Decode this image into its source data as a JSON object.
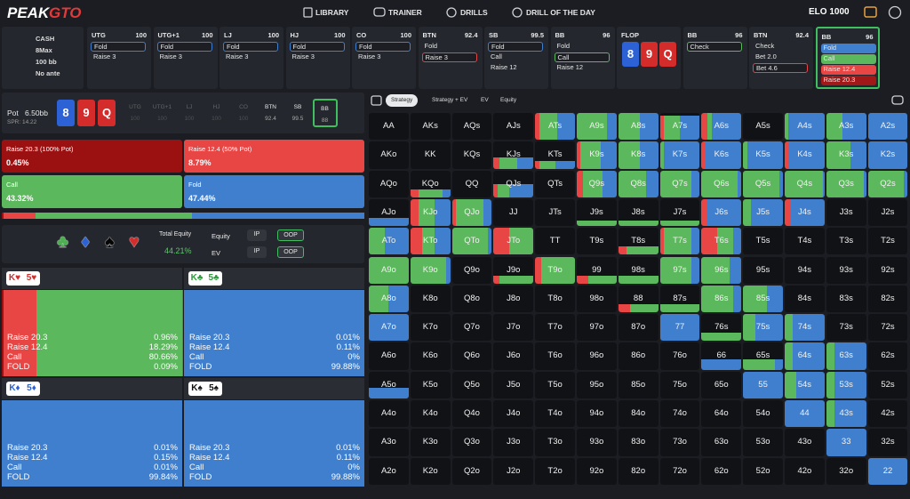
{
  "header": {
    "logo_left": "PEAK",
    "logo_right": "GTO",
    "nav": [
      "LIBRARY",
      "TRAINER",
      "DRILLS",
      "DRILL OF THE DAY"
    ],
    "elo": "ELO 1000"
  },
  "game": {
    "format": "CASH",
    "players": "8Max",
    "stack": "100 bb",
    "ante": "No ante"
  },
  "actions_row": [
    {
      "position": "UTG",
      "stack": 100,
      "options": [
        "Fold",
        "Raise 3"
      ],
      "selected": 0,
      "selected_color": "#3f7fce"
    },
    {
      "position": "UTG+1",
      "stack": 100,
      "options": [
        "Fold",
        "Raise 3"
      ],
      "selected": 0,
      "selected_color": "#3f7fce"
    },
    {
      "position": "LJ",
      "stack": 100,
      "options": [
        "Fold",
        "Raise 3"
      ],
      "selected": 0,
      "selected_color": "#3f7fce"
    },
    {
      "position": "HJ",
      "stack": 100,
      "options": [
        "Fold",
        "Raise 3"
      ],
      "selected": 0,
      "selected_color": "#3f7fce"
    },
    {
      "position": "CO",
      "stack": 100,
      "options": [
        "Fold",
        "Raise 3"
      ],
      "selected": 0,
      "selected_color": "#3f7fce"
    },
    {
      "position": "BTN",
      "stack": 92.4,
      "options": [
        "Fold",
        "Raise 3"
      ],
      "selected": 1,
      "selected_color": "#e84545"
    },
    {
      "position": "SB",
      "stack": 99.5,
      "options": [
        "Fold",
        "Call",
        "Raise 12"
      ],
      "selected": 0,
      "selected_color": "#3f7fce"
    },
    {
      "position": "BB",
      "stack": 96,
      "options": [
        "Fold",
        "Call",
        "Raise 12"
      ],
      "selected": 1,
      "selected_color": "#5cb85c"
    },
    {
      "street": "FLOP"
    },
    {
      "position": "BB",
      "stack": 96,
      "options": [
        "Check"
      ],
      "selected": 0,
      "selected_color": "#5cb85c"
    },
    {
      "position": "BTN",
      "stack": 92.4,
      "options": [
        "Check",
        "Bet 2.0",
        "Bet 4.6"
      ],
      "selected": 2,
      "selected_color": "#e84545"
    },
    {
      "position": "BB",
      "stack": 96,
      "options": [
        "Fold",
        "Call",
        "Raise 12.4",
        "Raise 20.3"
      ],
      "option_colors": [
        "#3f7fce",
        "#5cb85c",
        "#e84545",
        "#a01818"
      ],
      "active_color": "#3fbf5f"
    }
  ],
  "board": [
    {
      "rank": "8",
      "color": "#2d62d6"
    },
    {
      "rank": "9",
      "color": "#d42b2b"
    },
    {
      "rank": "Q",
      "color": "#d42b2b"
    }
  ],
  "pot_label": "Pot",
  "pot": "6.50bb",
  "spr": "SPR: 14.22",
  "seats": {
    "items": [
      {
        "position": "UTG",
        "stack": 100
      },
      {
        "position": "UTG+1",
        "stack": 100
      },
      {
        "position": "LJ",
        "stack": 100
      },
      {
        "position": "HJ",
        "stack": 100
      },
      {
        "position": "CO",
        "stack": 100
      },
      {
        "position": "BTN",
        "stack": 92.4
      },
      {
        "position": "SB",
        "stack": 99.5
      },
      {
        "position": "BB",
        "stack": 88
      }
    ],
    "folded": [
      0,
      1,
      2,
      3,
      4
    ],
    "active": 7
  },
  "action_colors": [
    "#9b1010",
    "#e84545",
    "#5cb85c",
    "#3f7fce"
  ],
  "summary": {
    "actions": [
      "Raise 20.3 (100% Pot)",
      "Raise 12.4 (50% Pot)",
      "Call",
      "Fold"
    ],
    "values": [
      0.45,
      8.79,
      43.32,
      47.44
    ],
    "value_labels": [
      "0.45%",
      "8.79%",
      "43.32%",
      "47.44%"
    ]
  },
  "suits": [
    {
      "symbol": "♣",
      "color": "#4caf50"
    },
    {
      "symbol": "♦",
      "color": "#2d62d6"
    },
    {
      "symbol": "♠",
      "color": "#050505"
    },
    {
      "symbol": "♥",
      "color": "#d42b2b"
    }
  ],
  "equity": {
    "total_label": "Total Equity",
    "total": "44.21%",
    "rows": [
      {
        "label": "Equity",
        "options": [
          "IP",
          "OOP"
        ],
        "selected": 1
      },
      {
        "label": "EV",
        "options": [
          "IP",
          "OOP"
        ],
        "selected": 1
      }
    ]
  },
  "combos": [
    {
      "cards": [
        "K♥",
        "5♥"
      ],
      "card_color": "#d42b2b",
      "actions": [
        "Raise 20.3",
        "Raise 12.4",
        "Call",
        "FOLD"
      ],
      "values": [
        0.96,
        18.29,
        80.66,
        0.09
      ],
      "value_labels": [
        "0.96%",
        "18.29%",
        "80.66%",
        "0.09%"
      ]
    },
    {
      "cards": [
        "K♣",
        "5♣"
      ],
      "card_color": "#2e9a3e",
      "actions": [
        "Raise 20.3",
        "Raise 12.4",
        "Call",
        "FOLD"
      ],
      "values": [
        0.01,
        0.11,
        0,
        99.88
      ],
      "value_labels": [
        "0.01%",
        "0.11%",
        "0%",
        "99.88%"
      ]
    },
    {
      "cards": [
        "K♦",
        "5♦"
      ],
      "card_color": "#2d62d6",
      "actions": [
        "Raise 20.3",
        "Raise 12.4",
        "Call",
        "FOLD"
      ],
      "values": [
        0.01,
        0.15,
        0.01,
        99.84
      ],
      "value_labels": [
        "0.01%",
        "0.15%",
        "0.01%",
        "99.84%"
      ]
    },
    {
      "cards": [
        "K♠",
        "5♠"
      ],
      "card_color": "#111111",
      "actions": [
        "Raise 20.3",
        "Raise 12.4",
        "Call",
        "FOLD"
      ],
      "values": [
        0.01,
        0.11,
        0,
        99.88
      ],
      "value_labels": [
        "0.01%",
        "0.11%",
        "0%",
        "99.88%"
      ]
    }
  ],
  "tabs": {
    "items": [
      "Strategy",
      "Strategy + EV",
      "EV",
      "Equity"
    ],
    "selected": 0
  },
  "grid": {
    "hands": [
      [
        "AA",
        "AKs",
        "AQs",
        "AJs",
        "ATs",
        "A9s",
        "A8s",
        "A7s",
        "A6s",
        "A5s",
        "A4s",
        "A3s",
        "A2s"
      ],
      [
        "AKo",
        "KK",
        "KQs",
        "KJs",
        "KTs",
        "K9s",
        "K8s",
        "K7s",
        "K6s",
        "K5s",
        "K4s",
        "K3s",
        "K2s"
      ],
      [
        "AQo",
        "KQo",
        "QQ",
        "QJs",
        "QTs",
        "Q9s",
        "Q8s",
        "Q7s",
        "Q6s",
        "Q5s",
        "Q4s",
        "Q3s",
        "Q2s"
      ],
      [
        "AJo",
        "KJo",
        "QJo",
        "JJ",
        "JTs",
        "J9s",
        "J8s",
        "J7s",
        "J6s",
        "J5s",
        "J4s",
        "J3s",
        "J2s"
      ],
      [
        "ATo",
        "KTo",
        "QTo",
        "JTo",
        "TT",
        "T9s",
        "T8s",
        "T7s",
        "T6s",
        "T5s",
        "T4s",
        "T3s",
        "T2s"
      ],
      [
        "A9o",
        "K9o",
        "Q9o",
        "J9o",
        "T9o",
        "99",
        "98s",
        "97s",
        "96s",
        "95s",
        "94s",
        "93s",
        "92s"
      ],
      [
        "A8o",
        "K8o",
        "Q8o",
        "J8o",
        "T8o",
        "98o",
        "88",
        "87s",
        "86s",
        "85s",
        "84s",
        "83s",
        "82s"
      ],
      [
        "A7o",
        "K7o",
        "Q7o",
        "J7o",
        "T7o",
        "97o",
        "87o",
        "77",
        "76s",
        "75s",
        "74s",
        "73s",
        "72s"
      ],
      [
        "A6o",
        "K6o",
        "Q6o",
        "J6o",
        "T6o",
        "96o",
        "86o",
        "76o",
        "66",
        "65s",
        "64s",
        "63s",
        "62s"
      ],
      [
        "A5o",
        "K5o",
        "Q5o",
        "J5o",
        "T5o",
        "95o",
        "85o",
        "75o",
        "65o",
        "55",
        "54s",
        "53s",
        "52s"
      ],
      [
        "A4o",
        "K4o",
        "Q4o",
        "J4o",
        "T4o",
        "94o",
        "84o",
        "74o",
        "64o",
        "54o",
        "44",
        "43s",
        "42s"
      ],
      [
        "A3o",
        "K3o",
        "Q3o",
        "J3o",
        "T3o",
        "93o",
        "83o",
        "73o",
        "63o",
        "53o",
        "43o",
        "33",
        "32s"
      ],
      [
        "A2o",
        "K2o",
        "Q2o",
        "J2o",
        "T2o",
        "92o",
        "82o",
        "72o",
        "62o",
        "52o",
        "42o",
        "32o",
        "22"
      ]
    ],
    "mix": [
      [
        null,
        null,
        null,
        null,
        [
          1,
          0,
          10,
          45,
          45
        ],
        [
          1,
          0,
          0,
          75,
          25
        ],
        [
          1,
          0,
          0,
          55,
          45
        ],
        [
          0.9,
          0,
          10,
          40,
          50
        ],
        [
          1,
          0,
          15,
          10,
          75
        ],
        null,
        [
          1,
          0,
          0,
          10,
          90
        ],
        [
          1,
          0,
          0,
          40,
          60
        ],
        [
          1,
          0,
          0,
          0,
          100
        ]
      ],
      [
        null,
        null,
        null,
        [
          0.4,
          0,
          15,
          45,
          40
        ],
        [
          0.3,
          0,
          10,
          40,
          50
        ],
        [
          1,
          0,
          10,
          50,
          40
        ],
        [
          1,
          0,
          0,
          55,
          45
        ],
        [
          1,
          0,
          0,
          10,
          90
        ],
        [
          1,
          0,
          10,
          0,
          90
        ],
        [
          1,
          0,
          0,
          10,
          90
        ],
        [
          1,
          0,
          10,
          0,
          90
        ],
        [
          1,
          0,
          0,
          60,
          40
        ],
        [
          1,
          0,
          0,
          0,
          100
        ]
      ],
      [
        null,
        [
          0.3,
          0,
          20,
          60,
          20
        ],
        null,
        [
          0.5,
          0,
          10,
          30,
          60
        ],
        null,
        [
          1,
          0,
          15,
          50,
          35
        ],
        [
          1,
          0,
          0,
          70,
          30
        ],
        [
          1,
          0,
          0,
          80,
          20
        ],
        [
          1,
          0,
          0,
          90,
          10
        ],
        [
          1,
          0,
          0,
          90,
          10
        ],
        [
          1,
          0,
          0,
          95,
          5
        ],
        [
          1,
          0,
          0,
          95,
          5
        ],
        [
          1,
          0,
          0,
          90,
          10
        ]
      ],
      [
        [
          0.3,
          0,
          0,
          0,
          100
        ],
        [
          1,
          0,
          20,
          40,
          40
        ],
        [
          1,
          0,
          10,
          70,
          20
        ],
        null,
        null,
        [
          0.2,
          0,
          0,
          100,
          0
        ],
        [
          0.2,
          0,
          0,
          100,
          0
        ],
        [
          0.2,
          0,
          0,
          100,
          0
        ],
        [
          1,
          0,
          15,
          0,
          85
        ],
        [
          1,
          0,
          0,
          20,
          80
        ],
        [
          1,
          0,
          15,
          0,
          85
        ],
        null,
        null
      ],
      [
        [
          1,
          0,
          0,
          40,
          60
        ],
        [
          1,
          0,
          30,
          30,
          40
        ],
        [
          1,
          0,
          0,
          90,
          10
        ],
        [
          1,
          0,
          40,
          60,
          0
        ],
        null,
        null,
        [
          0.3,
          0,
          20,
          80,
          0
        ],
        [
          1,
          0,
          10,
          70,
          20
        ],
        [
          1,
          0,
          40,
          40,
          20
        ],
        null,
        null,
        null,
        null
      ],
      [
        [
          1,
          0,
          0,
          100,
          0
        ],
        [
          1,
          0,
          0,
          90,
          10
        ],
        null,
        [
          0.3,
          0,
          15,
          85,
          0
        ],
        [
          1,
          0,
          15,
          85,
          0
        ],
        [
          0.3,
          0,
          30,
          70,
          0
        ],
        [
          0.3,
          0,
          0,
          100,
          0
        ],
        [
          1,
          0,
          0,
          80,
          20
        ],
        [
          1,
          0,
          0,
          70,
          30
        ],
        null,
        null,
        null,
        null
      ],
      [
        [
          1,
          0,
          0,
          50,
          50
        ],
        null,
        null,
        null,
        null,
        null,
        [
          0.3,
          0,
          30,
          70,
          0
        ],
        [
          0.3,
          0,
          0,
          100,
          0
        ],
        [
          1,
          0,
          0,
          80,
          20
        ],
        [
          1,
          0,
          0,
          60,
          40
        ],
        null,
        null,
        null
      ],
      [
        [
          1,
          0,
          0,
          0,
          100
        ],
        null,
        null,
        null,
        null,
        null,
        null,
        [
          1,
          0,
          0,
          0,
          100
        ],
        [
          0.3,
          0,
          0,
          100,
          0
        ],
        [
          1,
          0,
          0,
          30,
          70
        ],
        [
          1,
          0,
          0,
          20,
          80
        ],
        null,
        null
      ],
      [
        null,
        null,
        null,
        null,
        null,
        null,
        null,
        null,
        [
          0.4,
          0,
          0,
          0,
          100
        ],
        [
          0.4,
          0,
          0,
          80,
          20
        ],
        [
          1,
          0,
          0,
          20,
          80
        ],
        [
          1,
          0,
          0,
          20,
          80
        ],
        null
      ],
      [
        [
          0.4,
          0,
          0,
          0,
          100
        ],
        null,
        null,
        null,
        null,
        null,
        null,
        null,
        null,
        [
          1,
          0,
          0,
          0,
          100
        ],
        [
          1,
          0,
          0,
          30,
          70
        ],
        [
          1,
          0,
          0,
          20,
          80
        ],
        null
      ],
      [
        null,
        null,
        null,
        null,
        null,
        null,
        null,
        null,
        null,
        null,
        [
          1,
          0,
          0,
          0,
          100
        ],
        [
          1,
          0,
          0,
          20,
          80
        ],
        null
      ],
      [
        null,
        null,
        null,
        null,
        null,
        null,
        null,
        null,
        null,
        null,
        null,
        [
          1,
          0,
          0,
          0,
          100
        ],
        null
      ],
      [
        null,
        null,
        null,
        null,
        null,
        null,
        null,
        null,
        null,
        null,
        null,
        null,
        [
          1,
          0,
          0,
          0,
          100
        ]
      ]
    ]
  }
}
